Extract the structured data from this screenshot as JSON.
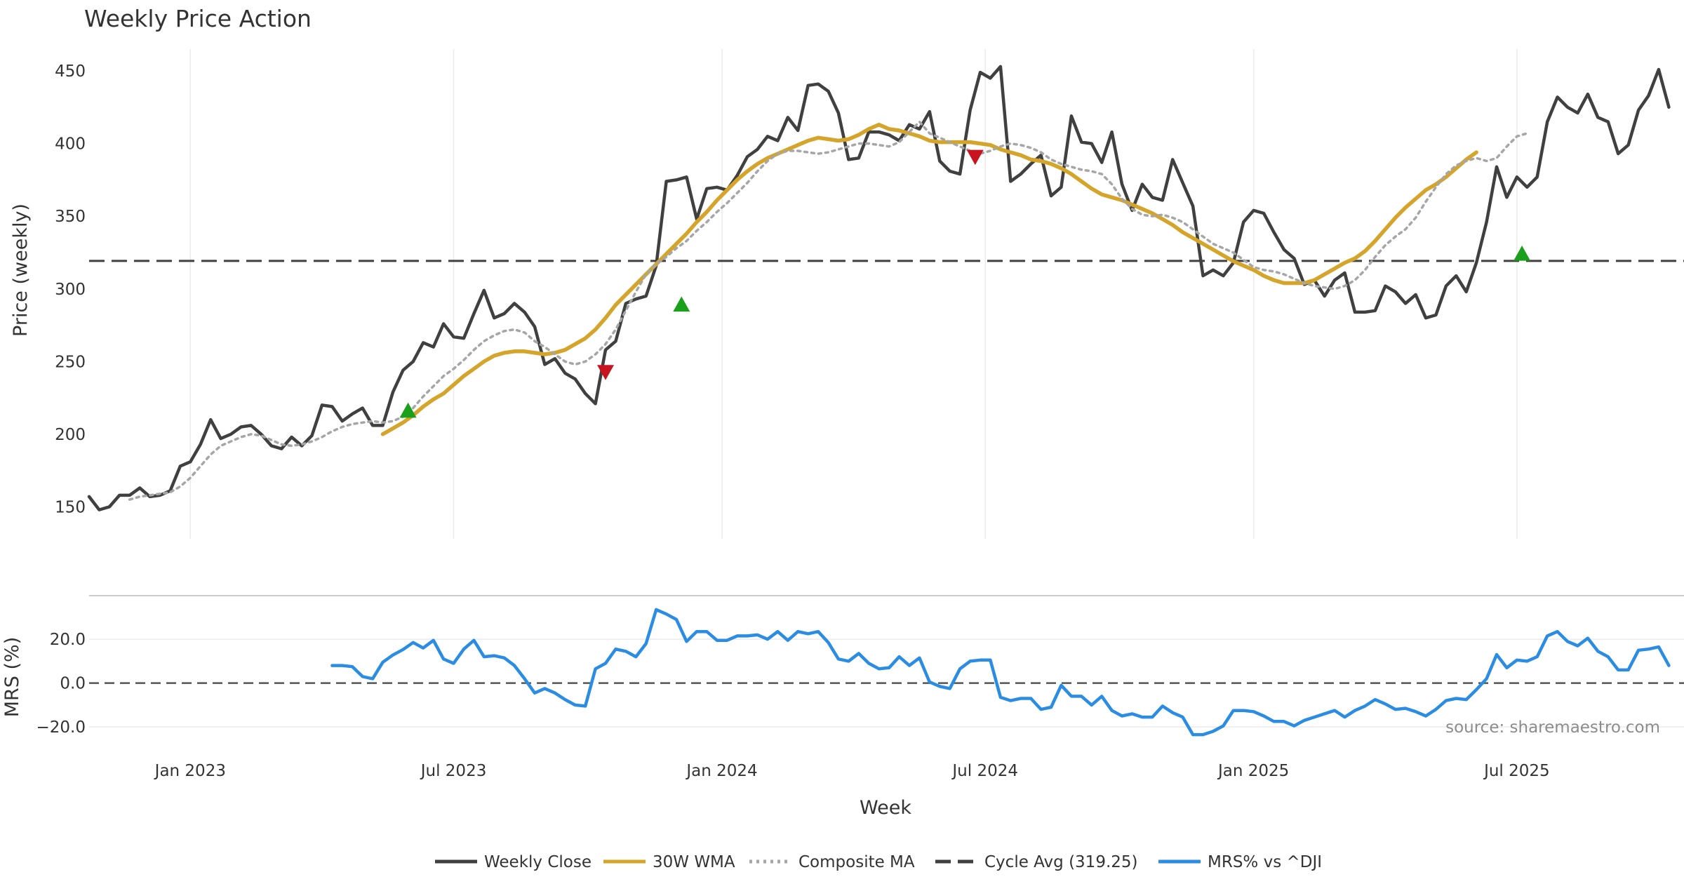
{
  "chart_data": {
    "type": "line",
    "title": "Weekly Price Action",
    "xlabel": "Week",
    "ylabel": "Price (weekly)",
    "ylim": [
      128,
      465
    ],
    "yticks": [
      150,
      200,
      250,
      300,
      350,
      400,
      450
    ],
    "x_ticks": [
      {
        "label": "Jan 2023",
        "week": 10
      },
      {
        "label": "Jul 2023",
        "week": 36
      },
      {
        "label": "Jan 2024",
        "week": 62.5
      },
      {
        "label": "Jul 2024",
        "week": 88.5
      },
      {
        "label": "Jan 2025",
        "week": 115
      },
      {
        "label": "Jul 2025",
        "week": 141
      }
    ],
    "xlim": [
      0,
      157.5
    ],
    "cycle_average": 319.25,
    "series": [
      {
        "name": "Weekly Close",
        "color": "#404040",
        "style": "solid",
        "start_week": 0,
        "values": [
          157,
          148,
          150,
          158,
          158,
          163,
          157,
          158,
          161,
          178,
          181,
          193,
          210,
          197,
          200,
          205,
          206,
          200,
          192,
          190,
          198,
          192,
          199,
          220,
          219,
          209,
          214,
          218,
          206,
          206,
          229,
          244,
          250,
          263,
          260,
          276,
          267,
          266,
          283,
          299,
          280,
          283,
          290,
          284,
          274,
          248,
          252,
          242,
          238,
          228,
          221,
          258,
          264,
          290,
          293,
          295,
          316,
          374,
          375,
          377,
          348,
          369,
          370,
          368,
          378,
          391,
          396,
          405,
          402,
          418,
          409,
          440,
          441,
          436,
          421,
          389,
          390,
          408,
          408,
          406,
          402,
          413,
          410,
          422,
          388,
          381,
          379,
          423,
          449,
          445,
          453,
          374,
          379,
          386,
          392,
          364,
          370,
          419,
          401,
          400,
          387,
          408,
          372,
          354,
          372,
          363,
          361,
          389,
          373,
          357,
          309,
          313,
          309,
          318,
          346,
          354,
          352,
          339,
          327,
          321,
          303,
          306,
          295,
          306,
          311,
          284,
          284,
          285,
          302,
          298,
          290,
          296,
          280,
          282,
          302,
          309,
          298,
          318,
          346,
          384,
          363,
          377,
          370,
          377,
          415,
          432,
          425,
          421,
          434,
          418,
          415,
          393,
          399,
          423,
          433,
          451,
          425
        ]
      },
      {
        "name": "30W WMA",
        "color": "#d4a52a",
        "style": "solid",
        "start_week": 29,
        "values": [
          200,
          204,
          208,
          213,
          219,
          224,
          228,
          234,
          240,
          245,
          250,
          254,
          256,
          257,
          257,
          256,
          255,
          256,
          258,
          262,
          266,
          272,
          280,
          289,
          296,
          303,
          310,
          317,
          324,
          331,
          338,
          346,
          353,
          361,
          368,
          375,
          381,
          386,
          390,
          393,
          396,
          399,
          402,
          404,
          403,
          402,
          403,
          406,
          410,
          413,
          410,
          409,
          407,
          405,
          402,
          401,
          401,
          401,
          401,
          400,
          399,
          396,
          394,
          392,
          389,
          388,
          386,
          383,
          379,
          374,
          369,
          365,
          363,
          361,
          358,
          355,
          352,
          348,
          344,
          339,
          335,
          331,
          327,
          323,
          319,
          316,
          313,
          309,
          306,
          304,
          304,
          304,
          306,
          310,
          314,
          318,
          321,
          326,
          333,
          341,
          349,
          356,
          362,
          368,
          372,
          377,
          383,
          389,
          394
        ]
      },
      {
        "name": "Composite MA",
        "color": "#a6a6a6",
        "style": "dotted",
        "start_week": 4,
        "values": [
          155,
          157,
          158,
          159,
          160,
          164,
          170,
          178,
          186,
          192,
          195,
          198,
          200,
          199,
          196,
          193,
          192,
          193,
          195,
          198,
          202,
          205,
          207,
          208,
          209,
          208,
          209,
          212,
          218,
          226,
          233,
          240,
          245,
          251,
          258,
          264,
          268,
          271,
          272,
          270,
          264,
          260,
          255,
          250,
          248,
          250,
          255,
          262,
          272,
          285,
          298,
          310,
          317,
          322,
          328,
          333,
          340,
          346,
          353,
          359,
          366,
          373,
          381,
          388,
          393,
          395,
          395,
          394,
          393,
          394,
          396,
          398,
          400,
          400,
          399,
          398,
          401,
          408,
          415,
          407,
          404,
          401,
          398,
          395,
          393,
          395,
          398,
          400,
          399,
          397,
          394,
          389,
          386,
          384,
          382,
          381,
          379,
          372,
          362,
          355,
          351,
          350,
          351,
          349,
          346,
          341,
          336,
          331,
          328,
          325,
          320,
          315,
          313,
          312,
          310,
          307,
          304,
          302,
          301,
          300,
          302,
          306,
          313,
          322,
          330,
          336,
          341,
          349,
          360,
          370,
          379,
          385,
          388,
          390,
          388,
          390,
          398,
          405,
          407
        ]
      },
      {
        "name": "Cycle Avg (319.25)",
        "color": "#404040",
        "style": "dashed",
        "value": 319.25
      },
      {
        "name": "MRS% vs ^DJI",
        "color": "#2b8ce3",
        "style": "solid",
        "panel": "lower",
        "start_week": 24,
        "values": [
          8.0,
          8.0,
          7.5,
          3.0,
          2.0,
          9.5,
          12.8,
          15.3,
          18.5,
          16.0,
          19.5,
          11.0,
          9.0,
          15.5,
          19.5,
          12.0,
          12.5,
          11.5,
          8.0,
          2.0,
          -4.5,
          -2.5,
          -4.5,
          -7.5,
          -10.0,
          -10.5,
          6.5,
          9.0,
          15.5,
          14.5,
          12.0,
          18.0,
          33.5,
          31.5,
          29.0,
          19.0,
          23.5,
          23.5,
          19.5,
          19.5,
          21.5,
          21.5,
          22.0,
          20.0,
          23.5,
          19.5,
          23.5,
          22.5,
          23.5,
          18.5,
          11.0,
          10.0,
          13.5,
          9.0,
          6.5,
          7.0,
          12.0,
          8.0,
          11.5,
          0.5,
          -1.5,
          -2.5,
          6.5,
          10.0,
          10.5,
          10.5,
          -6.5,
          -8.0,
          -7.0,
          -7.0,
          -12.0,
          -11.0,
          -1.0,
          -6.0,
          -6.0,
          -10.0,
          -6.0,
          -12.5,
          -15.0,
          -14.0,
          -15.5,
          -15.5,
          -10.5,
          -13.5,
          -15.5,
          -23.5,
          -23.5,
          -22.0,
          -19.5,
          -12.5,
          -12.5,
          -13.0,
          -15.0,
          -17.5,
          -17.5,
          -19.5,
          -17.0,
          -15.5,
          -14.0,
          -12.5,
          -15.5,
          -12.5,
          -10.5,
          -7.5,
          -9.5,
          -12.0,
          -11.5,
          -13.0,
          -15.0,
          -12.0,
          -8.0,
          -7.0,
          -7.5,
          -3.0,
          2.0,
          13.0,
          7.0,
          10.5,
          10.0,
          12.0,
          21.5,
          23.5,
          19.0,
          17.0,
          20.5,
          14.5,
          12.0,
          6.0,
          6.0,
          15.0,
          15.5,
          16.5,
          8.0
        ]
      }
    ],
    "markers": [
      {
        "type": "buy",
        "color": "#1aa01a",
        "week": 31.5,
        "value": 216
      },
      {
        "type": "sell",
        "color": "#c8141e",
        "week": 51,
        "value": 243
      },
      {
        "type": "buy",
        "color": "#1aa01a",
        "week": 58.5,
        "value": 289
      },
      {
        "type": "sell",
        "color": "#c8141e",
        "week": 87.5,
        "value": 391
      },
      {
        "type": "buy",
        "color": "#1aa01a",
        "week": 141.5,
        "value": 324
      }
    ],
    "lower_panel": {
      "ylabel": "MRS (%)",
      "ylim": [
        -27,
        37
      ],
      "yticks": [
        20.0,
        0.0,
        -20.0
      ],
      "ytick_labels": [
        "20.0",
        "0.0",
        "−20.0"
      ],
      "zero_line": 0
    },
    "legend": {
      "placement": "bottom-center",
      "entries": [
        "Weekly Close",
        "30W WMA",
        "Composite MA",
        "Cycle Avg (319.25)",
        "MRS% vs ^DJI"
      ]
    },
    "source_note": "source: sharemaestro.com"
  }
}
